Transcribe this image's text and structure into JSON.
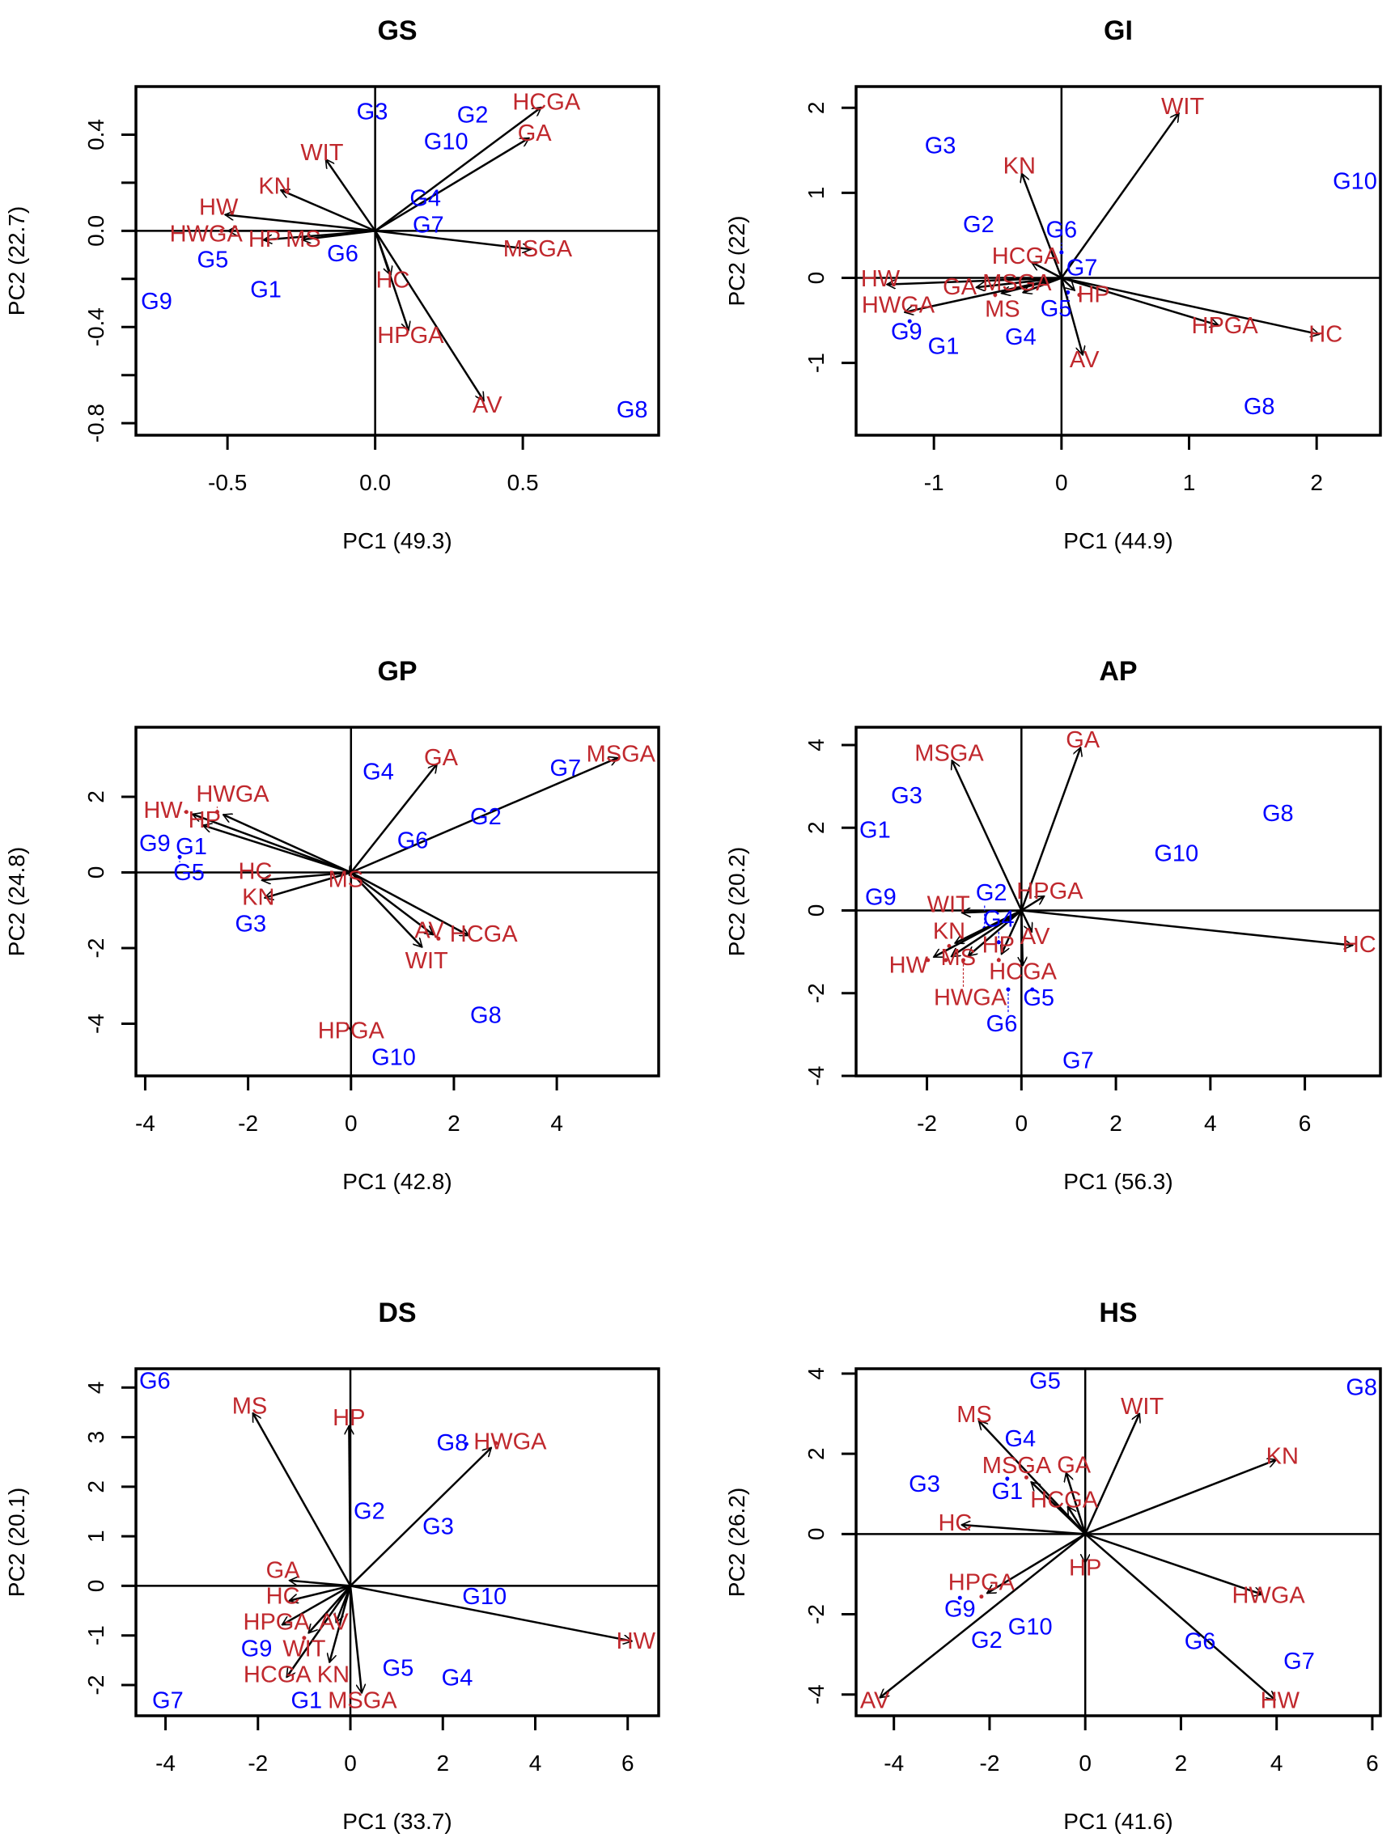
{
  "colors": {
    "genotype": "#0000ff",
    "variable": "#c0282d",
    "arrow": "#000000"
  },
  "chart_data": [
    {
      "type": "scatter",
      "subtype": "biplot",
      "title": "GS",
      "xlabel": "PC1 (49.3)",
      "ylabel": "PC2 (22.7)",
      "xlim": [
        -0.81,
        0.96
      ],
      "ylim": [
        -0.85,
        0.6
      ],
      "xticks": [
        -0.5,
        0.0,
        0.5
      ],
      "xtick_labels": [
        "-0.5",
        "0.0",
        "0.5"
      ],
      "yticks": [
        -0.8,
        -0.6,
        -0.4,
        -0.2,
        0.0,
        0.2,
        0.4
      ],
      "ytick_labels": [
        "-0.8",
        "",
        "-0.4",
        "",
        "0.0",
        "",
        "0.4"
      ],
      "genotypes": [
        {
          "label": "G3",
          "x": -0.01,
          "y": 0.49
        },
        {
          "label": "G2",
          "x": 0.33,
          "y": 0.45
        },
        {
          "label": "G10",
          "x": 0.24,
          "y": 0.39
        },
        {
          "label": "G4",
          "x": 0.17,
          "y": 0.11
        },
        {
          "label": "G7",
          "x": 0.18,
          "y": 0.04
        },
        {
          "label": "G6",
          "x": -0.11,
          "y": -0.1
        },
        {
          "label": "G5",
          "x": -0.55,
          "y": -0.12
        },
        {
          "label": "G1",
          "x": -0.37,
          "y": -0.25
        },
        {
          "label": "G9",
          "x": -0.74,
          "y": -0.3
        },
        {
          "label": "G8",
          "x": 0.87,
          "y": -0.75
        }
      ],
      "variables": [
        {
          "label": "HCGA",
          "x": 0.58,
          "y": 0.53
        },
        {
          "label": "GA",
          "x": 0.54,
          "y": 0.4
        },
        {
          "label": "WIT",
          "x": -0.18,
          "y": 0.32
        },
        {
          "label": "KN",
          "x": -0.34,
          "y": 0.18
        },
        {
          "label": "HW",
          "x": -0.53,
          "y": 0.07
        },
        {
          "label": "HWGA",
          "x": -0.52,
          "y": 0.0
        },
        {
          "label": "HP",
          "x": -0.4,
          "y": -0.04
        },
        {
          "label": "MS",
          "x": -0.27,
          "y": -0.04
        },
        {
          "label": "MSGA",
          "x": 0.55,
          "y": -0.08
        },
        {
          "label": "HC",
          "x": 0.06,
          "y": -0.21
        },
        {
          "label": "HPGA",
          "x": 0.12,
          "y": -0.44
        },
        {
          "label": "AV",
          "x": 0.38,
          "y": -0.73
        }
      ]
    },
    {
      "type": "scatter",
      "subtype": "biplot",
      "title": "GI",
      "xlabel": "PC1 (44.9)",
      "ylabel": "PC2 (22)",
      "xlim": [
        -1.61,
        2.5
      ],
      "ylim": [
        -1.85,
        2.25
      ],
      "xticks": [
        -1,
        0,
        1,
        2
      ],
      "xtick_labels": [
        "-1",
        "0",
        "1",
        "2"
      ],
      "yticks": [
        -1,
        0,
        1,
        2
      ],
      "ytick_labels": [
        "-1",
        "0",
        "1",
        "2"
      ],
      "genotypes": [
        {
          "label": "G3",
          "x": -0.95,
          "y": 1.54
        },
        {
          "label": "G10",
          "x": 2.3,
          "y": 1.12
        },
        {
          "label": "G2",
          "x": -0.65,
          "y": 0.61
        },
        {
          "label": "G6",
          "x": 0.0,
          "y": 0.3
        },
        {
          "label": "G7",
          "x": 0.16,
          "y": 0.1
        },
        {
          "label": "G5",
          "x": 0.05,
          "y": -0.17
        },
        {
          "label": "G9",
          "x": -1.19,
          "y": -0.51
        },
        {
          "label": "G1",
          "x": -0.95,
          "y": -0.82
        },
        {
          "label": "G4",
          "x": -0.32,
          "y": -0.71
        },
        {
          "label": "G8",
          "x": 1.55,
          "y": -1.53
        }
      ],
      "variables": [
        {
          "label": "WIT",
          "x": 0.95,
          "y": 2.0
        },
        {
          "label": "KN",
          "x": -0.33,
          "y": 1.3
        },
        {
          "label": "HCGA",
          "x": -0.28,
          "y": 0.22
        },
        {
          "label": "HW",
          "x": -1.42,
          "y": -0.08
        },
        {
          "label": "HWGA",
          "x": -1.28,
          "y": -0.42
        },
        {
          "label": "GA",
          "x": -0.72,
          "y": -0.12
        },
        {
          "label": "MS",
          "x": -0.52,
          "y": -0.2
        },
        {
          "label": "MSGA",
          "x": -0.35,
          "y": -0.2
        },
        {
          "label": "HP",
          "x": 0.14,
          "y": -0.2
        },
        {
          "label": "AV",
          "x": 0.18,
          "y": -0.98
        },
        {
          "label": "HPGA",
          "x": 1.28,
          "y": -0.58
        },
        {
          "label": "HC",
          "x": 2.07,
          "y": -0.68
        }
      ]
    },
    {
      "type": "scatter",
      "subtype": "biplot",
      "title": "GP",
      "xlabel": "PC1 (42.8)",
      "ylabel": "PC2 (24.8)",
      "xlim": [
        -4.18,
        5.98
      ],
      "ylim": [
        -5.38,
        3.84
      ],
      "xticks": [
        -4,
        -2,
        0,
        2,
        4
      ],
      "xtick_labels": [
        "-4",
        "-2",
        "0",
        "2",
        "4"
      ],
      "yticks": [
        -4,
        -2,
        0,
        2
      ],
      "ytick_labels": [
        "-4",
        "-2",
        "0",
        "2"
      ],
      "genotypes": [
        {
          "label": "G4",
          "x": 0.53,
          "y": 2.63
        },
        {
          "label": "G7",
          "x": 4.37,
          "y": 2.72
        },
        {
          "label": "G2",
          "x": 2.62,
          "y": 1.44
        },
        {
          "label": "G6",
          "x": 1.2,
          "y": 0.81
        },
        {
          "label": "G9",
          "x": -3.84,
          "y": 0.72
        },
        {
          "label": "G1",
          "x": -3.2,
          "y": 0.72
        },
        {
          "label": "G5",
          "x": -3.33,
          "y": 0.41
        },
        {
          "label": "G3",
          "x": -1.95,
          "y": -1.16
        },
        {
          "label": "G8",
          "x": 2.62,
          "y": -3.81
        },
        {
          "label": "G10",
          "x": 0.83,
          "y": -4.78
        }
      ],
      "variables": [
        {
          "label": "MSGA",
          "x": 5.3,
          "y": 3.1
        },
        {
          "label": "GA",
          "x": 1.75,
          "y": 3.0
        },
        {
          "label": "HW",
          "x": -3.2,
          "y": 1.6
        },
        {
          "label": "HWGA",
          "x": -2.6,
          "y": 1.6
        },
        {
          "label": "HP",
          "x": -3.0,
          "y": 1.3
        },
        {
          "label": "MS",
          "x": -0.1,
          "y": -0.22
        },
        {
          "label": "HC",
          "x": -1.86,
          "y": -0.22
        },
        {
          "label": "KN",
          "x": -1.8,
          "y": -0.72
        },
        {
          "label": "WIT",
          "x": 1.47,
          "y": -2.1
        },
        {
          "label": "AV",
          "x": 1.7,
          "y": -1.75
        },
        {
          "label": "HCGA",
          "x": 2.4,
          "y": -1.75
        },
        {
          "label": "HPGA",
          "x": 0.0,
          "y": -4.37
        }
      ]
    },
    {
      "type": "scatter",
      "subtype": "biplot",
      "title": "AP",
      "xlabel": "PC1 (56.3)",
      "ylabel": "PC2 (20.2)",
      "xlim": [
        -3.5,
        7.6
      ],
      "ylim": [
        -4.0,
        4.43
      ],
      "xticks": [
        -2,
        0,
        2,
        4,
        6
      ],
      "xtick_labels": [
        "-2",
        "0",
        "2",
        "4",
        "6"
      ],
      "yticks": [
        -4,
        -2,
        0,
        2,
        4
      ],
      "ytick_labels": [
        "-4",
        "-2",
        "0",
        "2",
        "4"
      ],
      "genotypes": [
        {
          "label": "G3",
          "x": -2.43,
          "y": 2.74
        },
        {
          "label": "G1",
          "x": -3.1,
          "y": 1.91
        },
        {
          "label": "G9",
          "x": -2.98,
          "y": 0.29
        },
        {
          "label": "G8",
          "x": 5.43,
          "y": 2.31
        },
        {
          "label": "G10",
          "x": 3.28,
          "y": 1.34
        },
        {
          "label": "G2",
          "x": -0.78,
          "y": -0.43
        },
        {
          "label": "G4",
          "x": -0.48,
          "y": -0.77
        },
        {
          "label": "G6",
          "x": -0.28,
          "y": -1.91
        },
        {
          "label": "G5",
          "x": 0.23,
          "y": -1.91
        },
        {
          "label": "G7",
          "x": 1.2,
          "y": -3.71
        }
      ],
      "variables": [
        {
          "label": "MSGA",
          "x": -1.53,
          "y": 3.77
        },
        {
          "label": "GA",
          "x": 1.3,
          "y": 4.09
        },
        {
          "label": "HPGA",
          "x": 0.6,
          "y": 0.43
        },
        {
          "label": "WIT",
          "x": -1.4,
          "y": -0.06
        },
        {
          "label": "KN",
          "x": -1.53,
          "y": -0.86
        },
        {
          "label": "HW",
          "x": -1.98,
          "y": -1.2
        },
        {
          "label": "MS",
          "x": -1.6,
          "y": -1.2
        },
        {
          "label": "HWGA",
          "x": -1.23,
          "y": -1.2
        },
        {
          "label": "HP",
          "x": -0.48,
          "y": -1.2
        },
        {
          "label": "AV",
          "x": 0.28,
          "y": -0.66
        },
        {
          "label": "HCGA",
          "x": 0.03,
          "y": -1.49
        },
        {
          "label": "HC",
          "x": 7.15,
          "y": -0.86
        }
      ]
    },
    {
      "type": "scatter",
      "subtype": "biplot",
      "title": "DS",
      "xlabel": "PC1 (33.7)",
      "ylabel": "PC2 (20.1)",
      "xlim": [
        -4.64,
        6.67
      ],
      "ylim": [
        -2.62,
        4.38
      ],
      "xticks": [
        -4,
        -2,
        0,
        2,
        4,
        6
      ],
      "xtick_labels": [
        "-4",
        "-2",
        "0",
        "2",
        "4",
        "6"
      ],
      "yticks": [
        -2,
        -1,
        0,
        1,
        2,
        3,
        4
      ],
      "ytick_labels": [
        "-2",
        "-1",
        "0",
        "1",
        "2",
        "3",
        "4"
      ],
      "genotypes": [
        {
          "label": "G6",
          "x": -4.28,
          "y": 4.12
        },
        {
          "label": "G8",
          "x": 2.51,
          "y": 2.86
        },
        {
          "label": "G2",
          "x": 0.41,
          "y": 1.48
        },
        {
          "label": "G3",
          "x": 1.9,
          "y": 1.17
        },
        {
          "label": "G10",
          "x": 2.9,
          "y": -0.24
        },
        {
          "label": "G9",
          "x": -2.03,
          "y": -1.31
        },
        {
          "label": "G5",
          "x": 1.03,
          "y": -1.69
        },
        {
          "label": "G4",
          "x": 2.31,
          "y": -1.88
        },
        {
          "label": "G1",
          "x": -0.95,
          "y": -2.36
        },
        {
          "label": "G7",
          "x": -3.95,
          "y": -2.38
        }
      ],
      "variables": [
        {
          "label": "MS",
          "x": -2.18,
          "y": 3.6
        },
        {
          "label": "HP",
          "x": -0.03,
          "y": 3.36
        },
        {
          "label": "HWGA",
          "x": 3.15,
          "y": 2.88
        },
        {
          "label": "GA",
          "x": -1.46,
          "y": 0.12
        },
        {
          "label": "HC",
          "x": -1.46,
          "y": -0.33
        },
        {
          "label": "HPGA",
          "x": -1.6,
          "y": -0.85
        },
        {
          "label": "WIT",
          "x": -1.0,
          "y": -1.05
        },
        {
          "label": "AV",
          "x": -0.36,
          "y": -0.86
        },
        {
          "label": "KN",
          "x": -0.49,
          "y": -1.67
        },
        {
          "label": "HCGA",
          "x": -1.46,
          "y": -1.95
        },
        {
          "label": "MSGA",
          "x": 0.26,
          "y": -2.29
        },
        {
          "label": "HW",
          "x": 6.23,
          "y": -1.14
        }
      ]
    },
    {
      "type": "scatter",
      "subtype": "biplot",
      "title": "HS",
      "xlabel": "PC1 (41.6)",
      "ylabel": "PC2 (26.2)",
      "xlim": [
        -4.79,
        6.17
      ],
      "ylim": [
        -4.53,
        4.12
      ],
      "xticks": [
        -4,
        -2,
        0,
        2,
        4,
        6
      ],
      "xtick_labels": [
        "-4",
        "-2",
        "0",
        "2",
        "4",
        "6"
      ],
      "yticks": [
        -4,
        -2,
        0,
        2,
        4
      ],
      "ytick_labels": [
        "-4",
        "-2",
        "0",
        "2",
        "4"
      ],
      "genotypes": [
        {
          "label": "G5",
          "x": -0.84,
          "y": 3.79
        },
        {
          "label": "G8",
          "x": 5.78,
          "y": 3.62
        },
        {
          "label": "G4",
          "x": -1.36,
          "y": 2.24
        },
        {
          "label": "G3",
          "x": -3.36,
          "y": 1.21
        },
        {
          "label": "G1",
          "x": -1.63,
          "y": 1.38
        },
        {
          "label": "G9",
          "x": -2.62,
          "y": -1.59
        },
        {
          "label": "G10",
          "x": -1.28,
          "y": -2.35
        },
        {
          "label": "G2",
          "x": -1.93,
          "y": -2.68
        },
        {
          "label": "G6",
          "x": 2.4,
          "y": -2.71
        },
        {
          "label": "G7",
          "x": 4.47,
          "y": -3.21
        }
      ],
      "variables": [
        {
          "label": "MS",
          "x": -2.32,
          "y": 2.94
        },
        {
          "label": "WIT",
          "x": 1.19,
          "y": 3.15
        },
        {
          "label": "KN",
          "x": 4.12,
          "y": 1.91
        },
        {
          "label": "GA",
          "x": -0.44,
          "y": 1.68
        },
        {
          "label": "MSGA",
          "x": -1.23,
          "y": 1.41
        },
        {
          "label": "HCGA",
          "x": -0.44,
          "y": 0.82
        },
        {
          "label": "HC",
          "x": -2.72,
          "y": 0.24
        },
        {
          "label": "HP",
          "x": 0.0,
          "y": -0.88
        },
        {
          "label": "HPGA",
          "x": -2.17,
          "y": -1.56
        },
        {
          "label": "HWGA",
          "x": 3.83,
          "y": -1.56
        },
        {
          "label": "HW",
          "x": 4.07,
          "y": -4.24
        },
        {
          "label": "AV",
          "x": -4.4,
          "y": -4.18
        }
      ]
    }
  ]
}
